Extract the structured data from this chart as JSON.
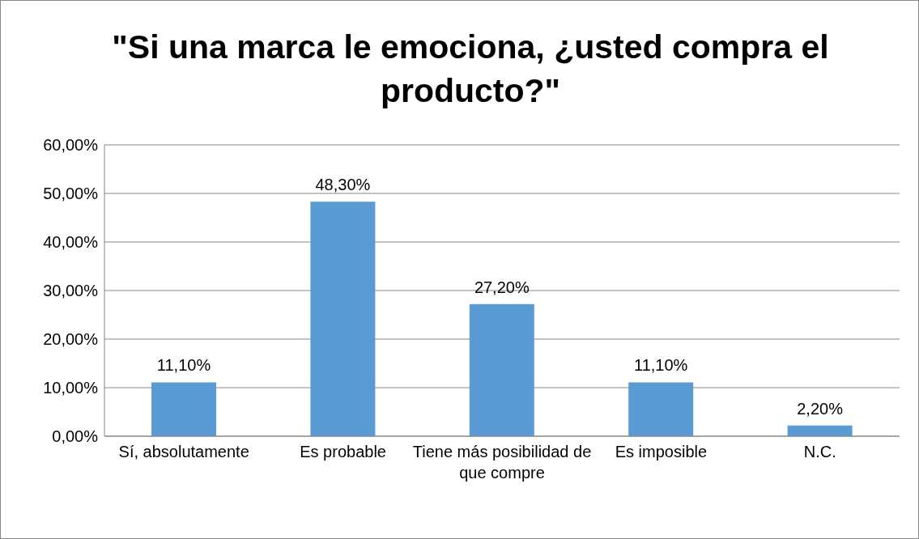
{
  "chart_data": {
    "type": "bar",
    "title": "\"Si una marca le emociona, ¿usted compra el producto?\"",
    "categories": [
      "Sí, absolutamente",
      "Es probable",
      "Tiene más posibilidad de que compre",
      "Es imposible",
      "N.C."
    ],
    "values": [
      11.1,
      48.3,
      27.2,
      11.1,
      2.2
    ],
    "value_labels": [
      "11,10%",
      "48,30%",
      "27,20%",
      "11,10%",
      "2,20%"
    ],
    "color": "#5b9bd5",
    "ylim": [
      0,
      60
    ],
    "yticks": [
      {
        "value": 0,
        "label": "0,00%"
      },
      {
        "value": 10,
        "label": "10,00%"
      },
      {
        "value": 20,
        "label": "20,00%"
      },
      {
        "value": 30,
        "label": "30,00%"
      },
      {
        "value": 40,
        "label": "40,00%"
      },
      {
        "value": 50,
        "label": "50,00%"
      },
      {
        "value": 60,
        "label": "60,00%"
      }
    ],
    "grid": "y",
    "legend": false
  }
}
